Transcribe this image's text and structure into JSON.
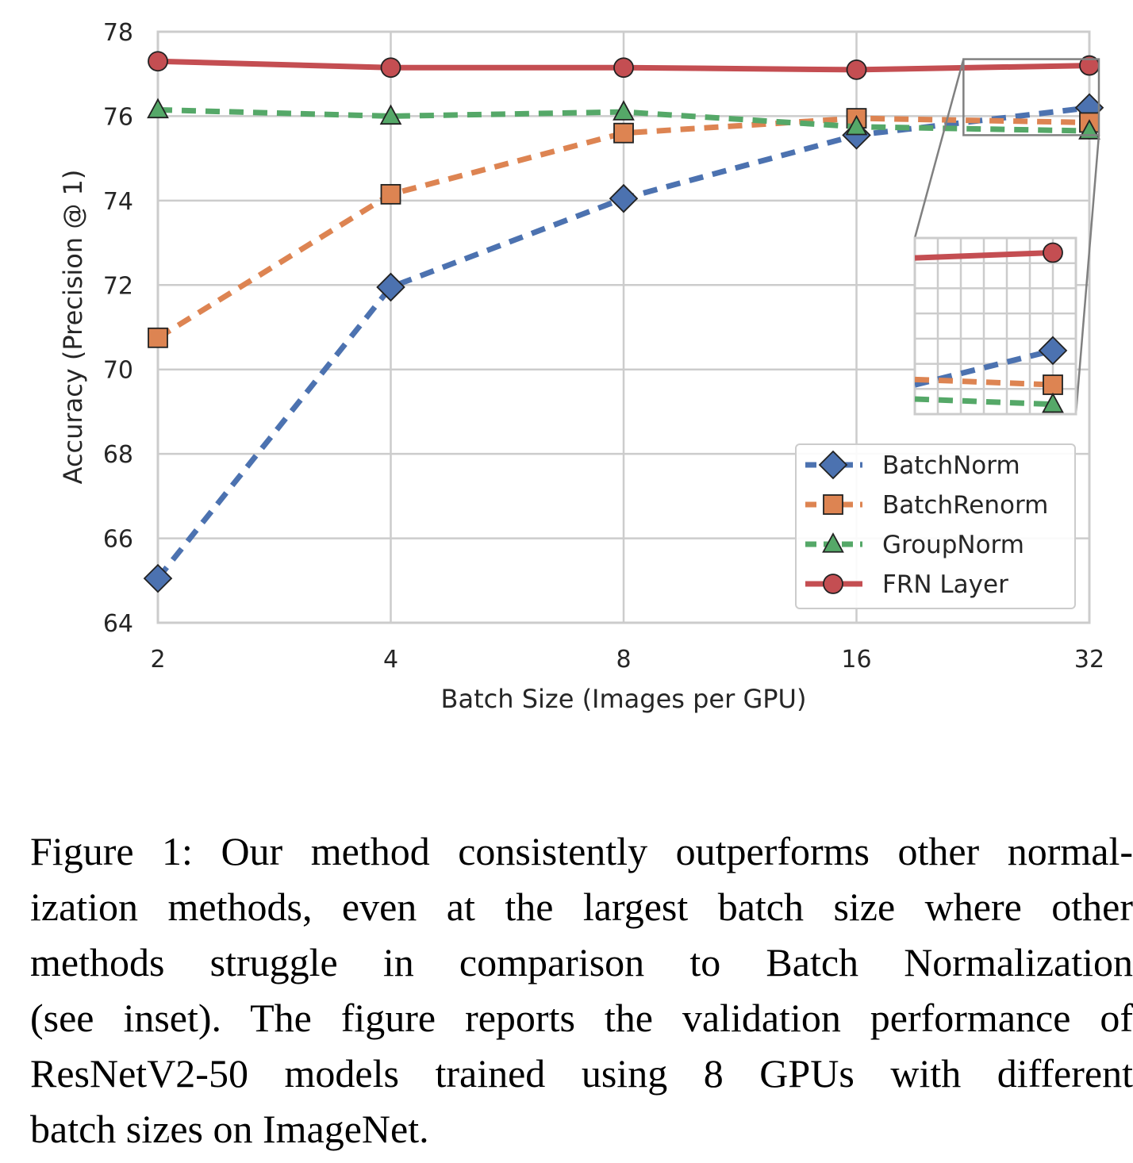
{
  "chart_data": {
    "type": "line",
    "title": "",
    "xlabel": "Batch Size (Images per GPU)",
    "ylabel": "Accuracy (Precision @ 1)",
    "x": [
      2,
      4,
      8,
      16,
      32
    ],
    "x_tick_labels": [
      "2",
      "4",
      "8",
      "16",
      "32"
    ],
    "x_scale": "log2",
    "ylim": [
      64,
      78
    ],
    "y_ticks": [
      64,
      66,
      68,
      70,
      72,
      74,
      76,
      78
    ],
    "y_tick_labels": [
      "64",
      "66",
      "68",
      "70",
      "72",
      "74",
      "76",
      "78"
    ],
    "grid": true,
    "legend_position": "lower-right",
    "series": [
      {
        "name": "BatchNorm",
        "values": [
          65.05,
          71.95,
          74.05,
          75.55,
          76.2
        ],
        "color": "#4c72b0",
        "marker": "diamond",
        "style": "dashed"
      },
      {
        "name": "BatchRenorm",
        "values": [
          70.75,
          74.15,
          75.6,
          75.95,
          75.85
        ],
        "color": "#dd8452",
        "marker": "square",
        "style": "dashed"
      },
      {
        "name": "GroupNorm",
        "values": [
          76.15,
          76.0,
          76.1,
          75.75,
          75.65
        ],
        "color": "#55a868",
        "marker": "triangle",
        "style": "dashed"
      },
      {
        "name": "FRN Layer",
        "values": [
          77.3,
          77.15,
          77.15,
          77.1,
          77.2
        ],
        "color": "#c44e52",
        "marker": "circle",
        "style": "solid"
      }
    ],
    "inset": {
      "description_region": "zoom of batch size 32",
      "xlim": [
        22,
        32
      ],
      "ylim": [
        75.55,
        77.35
      ]
    }
  },
  "caption": {
    "lines": [
      "Figure 1: Our method consistently outperforms other normal-",
      "ization methods, even at the largest batch size where other",
      "methods struggle in comparison to Batch Normalization",
      "(see inset). The figure reports the validation performance of",
      "ResNetV2-50 models trained using 8 GPUs with different",
      "batch sizes on ImageNet."
    ]
  }
}
